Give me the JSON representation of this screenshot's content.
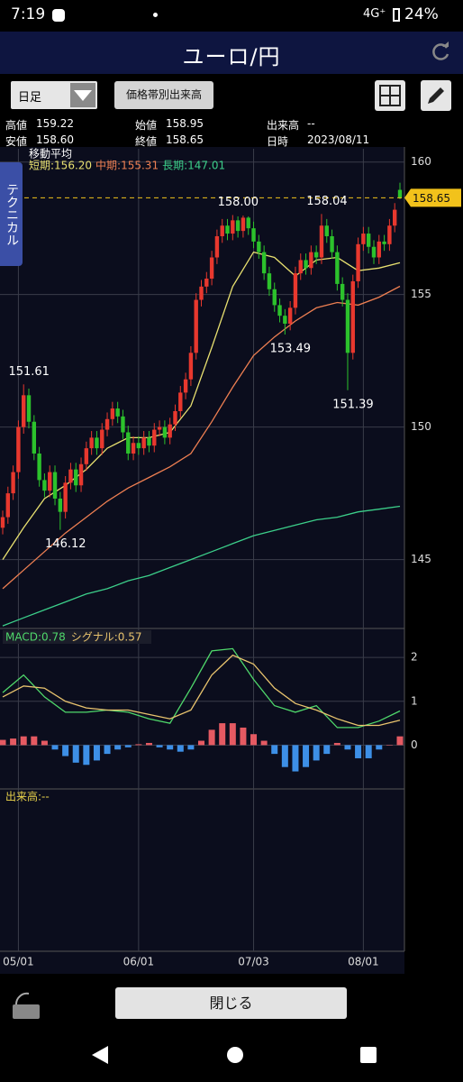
{
  "status_bar": {
    "time": "7:19",
    "network": "4G⁺",
    "battery": "24%"
  },
  "header": {
    "title": "ユーロ/円"
  },
  "toolbar": {
    "period": "日足",
    "volume_button": "価格帯別出来高"
  },
  "info": [
    [
      "高値",
      "159.22"
    ],
    [
      "始値",
      "158.95"
    ],
    [
      "出来高",
      "--"
    ],
    [
      "安値",
      "158.60"
    ],
    [
      "終値",
      "158.65"
    ],
    [
      "日時",
      "2023/08/11"
    ]
  ],
  "side_tab": "テクニカル",
  "chart_data": [
    {
      "type": "candlestick",
      "title": "移動平均",
      "xlim": [
        0,
        76
      ],
      "xticks": [
        {
          "value": 3,
          "label": "05/01"
        },
        {
          "value": 26,
          "label": "06/01"
        },
        {
          "value": 48,
          "label": "07/03"
        },
        {
          "value": 69,
          "label": "08/01"
        }
      ],
      "ylim": [
        142.4,
        160.5
      ],
      "yticks": [
        145,
        150,
        155,
        160
      ],
      "grid": true,
      "up_color": "#e8382e",
      "down_color": "#2cc22c",
      "candles": {
        "open": [
          146.2,
          146.6,
          147.5,
          148.3,
          150.0,
          151.2,
          150.2,
          149.0,
          148.0,
          147.6,
          148.3,
          147.3,
          146.8,
          147.9,
          148.4,
          147.8,
          148.6,
          149.2,
          149.6,
          149.2,
          149.9,
          150.3,
          150.7,
          150.4,
          149.8,
          149.0,
          149.4,
          149.2,
          149.6,
          149.3,
          149.9,
          150.0,
          149.6,
          150.1,
          150.6,
          151.3,
          151.8,
          152.8,
          154.8,
          155.3,
          155.6,
          156.4,
          157.2,
          157.6,
          157.3,
          157.8,
          157.4,
          157.9,
          157.5,
          157.0,
          156.6,
          155.8,
          155.2,
          154.6,
          154.2,
          153.9,
          154.5,
          155.8,
          156.3,
          156.0,
          156.6,
          156.4,
          157.6,
          157.2,
          156.6,
          155.4,
          154.8,
          152.8,
          155.5,
          156.9,
          157.3,
          156.8,
          156.4,
          157.0,
          156.9,
          157.6,
          158.95
        ],
        "high": [
          146.85,
          147.75,
          148.55,
          150.25,
          151.61,
          151.45,
          150.45,
          149.25,
          148.25,
          148.55,
          148.55,
          147.55,
          148.15,
          148.65,
          148.65,
          148.85,
          149.45,
          149.85,
          149.85,
          150.15,
          150.55,
          150.95,
          150.95,
          150.65,
          150.05,
          149.65,
          149.65,
          149.85,
          149.85,
          150.15,
          150.25,
          150.25,
          150.35,
          150.85,
          151.55,
          152.05,
          153.05,
          155.05,
          155.55,
          155.85,
          156.65,
          157.45,
          157.85,
          157.85,
          158.0,
          157.95,
          157.98,
          157.95,
          157.75,
          157.25,
          156.85,
          156.05,
          155.45,
          154.85,
          154.45,
          154.75,
          156.05,
          156.55,
          156.55,
          156.85,
          156.85,
          158.04,
          157.85,
          157.45,
          156.85,
          155.65,
          155.05,
          155.75,
          157.15,
          157.55,
          157.55,
          157.05,
          157.25,
          157.25,
          157.85,
          158.45,
          159.22
        ],
        "low": [
          145.95,
          146.35,
          147.25,
          148.05,
          149.75,
          149.95,
          148.75,
          147.75,
          147.35,
          147.35,
          147.05,
          146.12,
          146.55,
          147.65,
          147.55,
          147.55,
          148.35,
          148.95,
          148.95,
          148.95,
          149.65,
          150.05,
          150.15,
          149.55,
          148.75,
          148.75,
          148.95,
          148.95,
          149.05,
          149.05,
          149.65,
          149.35,
          149.35,
          149.85,
          150.35,
          151.05,
          151.55,
          152.55,
          154.55,
          155.05,
          155.35,
          156.15,
          156.95,
          157.05,
          157.05,
          157.15,
          157.15,
          157.25,
          156.75,
          156.35,
          155.55,
          154.95,
          154.35,
          153.95,
          153.49,
          153.65,
          154.25,
          155.55,
          155.75,
          155.75,
          156.15,
          156.15,
          156.95,
          156.35,
          155.15,
          154.55,
          151.39,
          152.55,
          155.25,
          156.65,
          156.55,
          156.15,
          156.15,
          156.65,
          156.65,
          157.35,
          158.6
        ],
        "close": [
          146.6,
          147.5,
          148.3,
          150.0,
          151.2,
          150.2,
          149.0,
          148.0,
          147.6,
          148.3,
          147.3,
          146.8,
          147.9,
          148.4,
          147.8,
          148.6,
          149.2,
          149.6,
          149.2,
          149.9,
          150.3,
          150.7,
          150.4,
          149.8,
          149.0,
          149.4,
          149.2,
          149.6,
          149.3,
          149.9,
          150.0,
          149.6,
          150.1,
          150.6,
          151.3,
          151.8,
          152.8,
          154.8,
          155.3,
          155.6,
          156.4,
          157.2,
          157.6,
          157.3,
          157.8,
          157.4,
          157.9,
          157.5,
          157.0,
          156.6,
          155.8,
          155.2,
          154.6,
          154.2,
          153.9,
          154.5,
          155.8,
          156.3,
          156.0,
          156.6,
          156.4,
          157.6,
          157.2,
          156.6,
          155.4,
          154.8,
          152.8,
          155.5,
          156.9,
          157.3,
          156.8,
          156.4,
          157.0,
          156.9,
          157.6,
          158.2,
          158.65
        ]
      },
      "series": [
        {
          "name": "短期:156.20",
          "color": "#e8e070",
          "x": [
            0,
            4,
            8,
            12,
            16,
            20,
            24,
            28,
            32,
            36,
            40,
            44,
            48,
            52,
            56,
            60,
            64,
            68,
            72,
            76
          ],
          "values": [
            145.0,
            146.2,
            147.3,
            147.8,
            148.4,
            149.2,
            149.6,
            149.6,
            149.8,
            150.8,
            153.0,
            155.3,
            156.6,
            156.4,
            155.7,
            156.3,
            156.4,
            155.9,
            156.0,
            156.2
          ]
        },
        {
          "name": "中期:155.31",
          "color": "#ee7f52",
          "x": [
            0,
            4,
            8,
            12,
            16,
            20,
            24,
            28,
            32,
            36,
            40,
            44,
            48,
            52,
            56,
            60,
            64,
            68,
            72,
            76
          ],
          "values": [
            143.9,
            144.6,
            145.3,
            146.0,
            146.6,
            147.2,
            147.7,
            148.1,
            148.5,
            149.0,
            150.2,
            151.5,
            152.7,
            153.4,
            154.0,
            154.5,
            154.7,
            154.6,
            154.9,
            155.31
          ]
        },
        {
          "name": "長期:147.01",
          "color": "#3ccf8a",
          "x": [
            0,
            4,
            8,
            12,
            16,
            20,
            24,
            28,
            32,
            36,
            40,
            44,
            48,
            52,
            56,
            60,
            64,
            68,
            72,
            76
          ],
          "values": [
            142.5,
            142.8,
            143.1,
            143.4,
            143.7,
            143.9,
            144.2,
            144.4,
            144.7,
            145.0,
            145.3,
            145.6,
            145.9,
            146.1,
            146.3,
            146.5,
            146.6,
            146.8,
            146.9,
            147.01
          ]
        }
      ],
      "price_line": 158.65,
      "price_line_color": "#f2c21b",
      "annotations": [
        {
          "x": 4,
          "value": 151.61,
          "label": "151.61"
        },
        {
          "x": 11,
          "value": 146.12,
          "label": "146.12"
        },
        {
          "x": 44,
          "value": 158.0,
          "label": "158.00"
        },
        {
          "x": 54,
          "value": 153.49,
          "label": "153.49"
        },
        {
          "x": 61,
          "value": 158.04,
          "label": "158.04"
        },
        {
          "x": 66,
          "value": 151.39,
          "label": "151.39"
        }
      ]
    },
    {
      "type": "line",
      "xlim": [
        0,
        76
      ],
      "ylim": [
        -1.0,
        2.6
      ],
      "yticks": [
        0,
        1,
        2
      ],
      "series": [
        {
          "name": "MACD:0.78",
          "color": "#4fd86b",
          "x": [
            0,
            4,
            8,
            12,
            16,
            20,
            24,
            28,
            32,
            36,
            40,
            44,
            48,
            52,
            56,
            60,
            64,
            68,
            72,
            76
          ],
          "values": [
            1.2,
            1.6,
            1.1,
            0.75,
            0.75,
            0.8,
            0.75,
            0.6,
            0.5,
            1.3,
            2.15,
            2.2,
            1.5,
            0.9,
            0.75,
            0.9,
            0.4,
            0.4,
            0.55,
            0.78
          ]
        },
        {
          "name": "シグナル:0.57",
          "color": "#e9c46e",
          "x": [
            0,
            4,
            8,
            12,
            16,
            20,
            24,
            28,
            32,
            36,
            40,
            44,
            48,
            52,
            56,
            60,
            64,
            68,
            72,
            76
          ],
          "values": [
            1.1,
            1.35,
            1.3,
            1.0,
            0.85,
            0.8,
            0.8,
            0.7,
            0.6,
            0.8,
            1.6,
            2.05,
            1.85,
            1.3,
            0.95,
            0.8,
            0.6,
            0.45,
            0.45,
            0.57
          ]
        }
      ],
      "histogram": {
        "x": [
          0,
          2,
          4,
          6,
          8,
          10,
          12,
          14,
          16,
          18,
          20,
          22,
          24,
          26,
          28,
          30,
          32,
          34,
          36,
          38,
          40,
          42,
          44,
          46,
          48,
          50,
          52,
          54,
          56,
          58,
          60,
          62,
          64,
          66,
          68,
          70,
          72,
          74,
          76
        ],
        "values": [
          0.12,
          0.15,
          0.2,
          0.2,
          0.1,
          -0.1,
          -0.25,
          -0.4,
          -0.45,
          -0.35,
          -0.2,
          -0.1,
          -0.05,
          0.02,
          0.05,
          -0.05,
          -0.1,
          -0.15,
          -0.1,
          0.1,
          0.35,
          0.5,
          0.5,
          0.4,
          0.25,
          0.1,
          -0.2,
          -0.5,
          -0.6,
          -0.5,
          -0.35,
          -0.2,
          0.05,
          -0.1,
          -0.3,
          -0.3,
          -0.1,
          0,
          0.2
        ],
        "up_color": "#e55a62",
        "down_color": "#3d8fe6"
      }
    }
  ],
  "volume_panel": {
    "label": "出来高:--"
  },
  "close_button": "閉じる"
}
